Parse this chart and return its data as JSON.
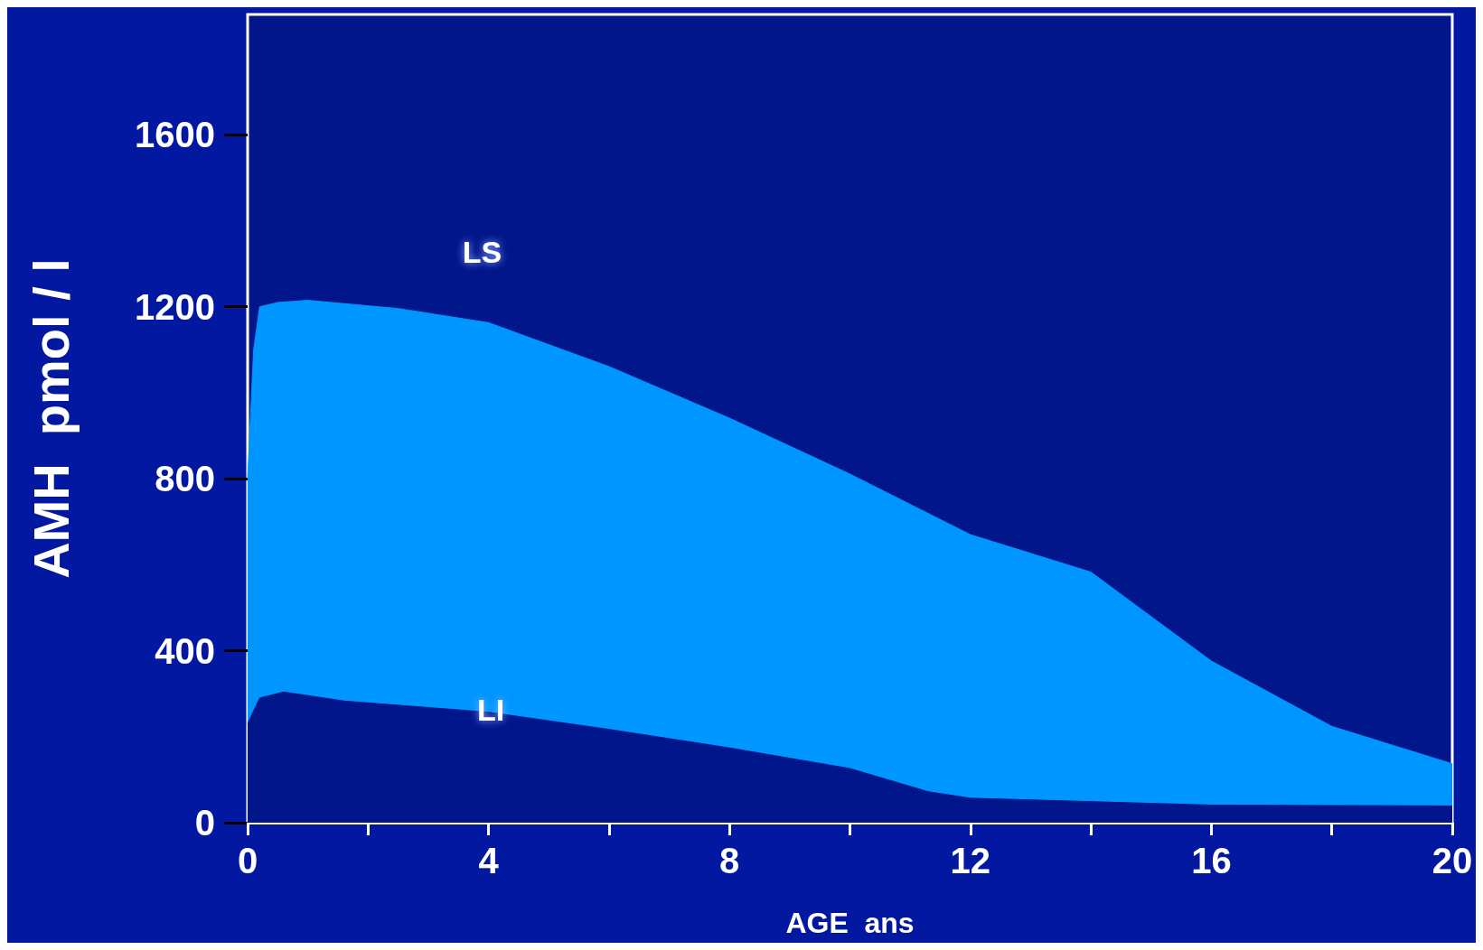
{
  "chart_data": {
    "type": "area",
    "xlabel": "AGE  ans",
    "ylabel": "AMH  pmol / l",
    "series": [
      {
        "color": "#0096ff",
        "x": [
          0,
          0.1,
          0.2,
          0.5,
          1,
          2.5,
          4,
          6,
          8,
          10,
          12,
          14,
          16,
          18,
          20
        ],
        "values": [
          800,
          1100,
          1200,
          1210,
          1215,
          1196,
          1163,
          1061,
          941,
          811,
          670,
          583,
          376,
          224,
          137
        ]
      },
      {
        "color": "#02168c",
        "x": [
          0,
          0.2,
          0.6,
          1.6,
          4,
          6,
          8,
          10,
          11.3,
          12,
          16,
          20
        ],
        "values": [
          230,
          290,
          304,
          283,
          257,
          217,
          174,
          126,
          72,
          57,
          41,
          39
        ]
      }
    ],
    "xlim": [
      0,
      20
    ],
    "xticks": [
      0,
      {
        "value": 2,
        "label": null
      },
      4,
      {
        "value": 6,
        "label": null
      },
      8,
      {
        "value": 10,
        "label": null
      },
      12,
      {
        "value": 14,
        "label": null
      },
      16,
      {
        "value": 18,
        "label": null
      },
      20
    ],
    "ylim": [
      0,
      1880
    ],
    "yticks": [
      0,
      400,
      800,
      1200,
      1600
    ],
    "annotations": [
      "LS",
      "LI"
    ],
    "grid": false
  }
}
